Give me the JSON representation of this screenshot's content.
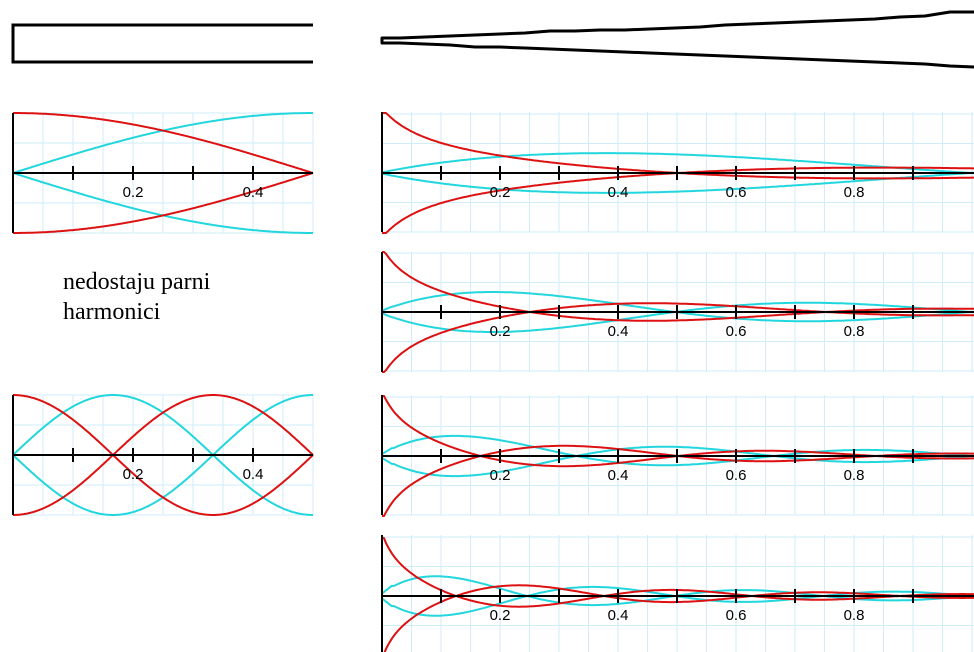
{
  "caption": {
    "line1": "nedostaju parni",
    "line2": "harmonici"
  },
  "colors": {
    "grid": "#cfeefa",
    "axis": "#000000",
    "tube_outline": "#000000",
    "pressure_curve": "#dd1111",
    "velocity_curve": "#22d6de"
  },
  "chart_data": [
    {
      "type": "line",
      "panel": "cylinder-mode-1",
      "xlim": [
        0,
        0.5
      ],
      "x_ticks": [
        0.1,
        0.2,
        0.3,
        0.4
      ],
      "tick_labels": [
        "0.2",
        "0.4"
      ],
      "tick_label_values": [
        0.2,
        0.4
      ],
      "series": [
        {
          "color": "red",
          "shape": "cos",
          "half_wavelengths_in_view": 1
        },
        {
          "color": "cyan",
          "shape": "sin",
          "half_wavelengths_in_view": 1
        }
      ]
    },
    {
      "type": "line",
      "panel": "cylinder-mode-3",
      "xlim": [
        0,
        0.5
      ],
      "x_ticks": [
        0.1,
        0.2,
        0.3,
        0.4
      ],
      "tick_labels": [
        "0.2",
        "0.4"
      ],
      "tick_label_values": [
        0.2,
        0.4
      ],
      "series": [
        {
          "color": "red",
          "shape": "cos",
          "half_wavelengths_in_view": 3
        },
        {
          "color": "cyan",
          "shape": "sin",
          "half_wavelengths_in_view": 3
        }
      ]
    },
    {
      "type": "line",
      "panel": "cone-mode-1",
      "xlim": [
        0,
        1.0
      ],
      "x_ticks": [
        0.1,
        0.2,
        0.3,
        0.4,
        0.5,
        0.6,
        0.7,
        0.8,
        0.9
      ],
      "tick_labels": [
        "0.2",
        "0.4",
        "0.6",
        "0.8"
      ],
      "tick_label_values": [
        0.2,
        0.4,
        0.6,
        0.8
      ],
      "series": [
        {
          "color": "red",
          "mode": 1
        },
        {
          "color": "cyan",
          "mode": 1
        }
      ]
    },
    {
      "type": "line",
      "panel": "cone-mode-2",
      "xlim": [
        0,
        1.0
      ],
      "x_ticks": [
        0.1,
        0.2,
        0.3,
        0.4,
        0.5,
        0.6,
        0.7,
        0.8,
        0.9
      ],
      "tick_labels": [
        "0.2",
        "0.4",
        "0.6",
        "0.8"
      ],
      "tick_label_values": [
        0.2,
        0.4,
        0.6,
        0.8
      ],
      "series": [
        {
          "color": "red",
          "mode": 2
        },
        {
          "color": "cyan",
          "mode": 2
        }
      ]
    },
    {
      "type": "line",
      "panel": "cone-mode-3",
      "xlim": [
        0,
        1.0
      ],
      "x_ticks": [
        0.1,
        0.2,
        0.3,
        0.4,
        0.5,
        0.6,
        0.7,
        0.8,
        0.9
      ],
      "tick_labels": [
        "0.2",
        "0.4",
        "0.6",
        "0.8"
      ],
      "tick_label_values": [
        0.2,
        0.4,
        0.6,
        0.8
      ],
      "series": [
        {
          "color": "red",
          "mode": 3
        },
        {
          "color": "cyan",
          "mode": 3
        }
      ]
    },
    {
      "type": "line",
      "panel": "cone-mode-4",
      "xlim": [
        0,
        1.0
      ],
      "x_ticks": [
        0.1,
        0.2,
        0.3,
        0.4,
        0.5,
        0.6,
        0.7,
        0.8,
        0.9
      ],
      "tick_labels": [
        "0.2",
        "0.4",
        "0.6",
        "0.8"
      ],
      "tick_label_values": [
        0.2,
        0.4,
        0.6,
        0.8
      ],
      "series": [
        {
          "color": "red",
          "mode": 4
        },
        {
          "color": "cyan",
          "mode": 4
        }
      ]
    }
  ]
}
